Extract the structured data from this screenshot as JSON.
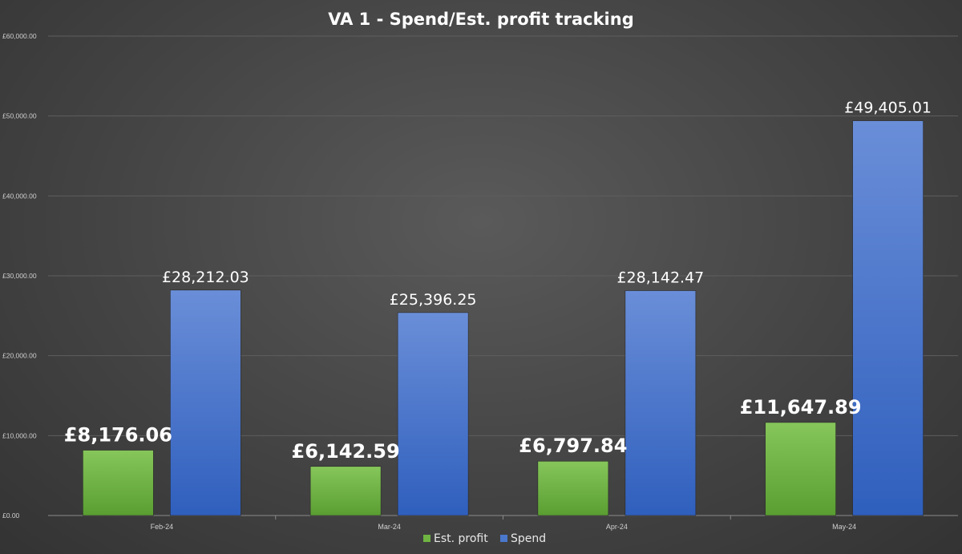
{
  "chart_data": {
    "type": "bar",
    "title": "VA 1 - Spend/Est. profit tracking",
    "xlabel": "",
    "ylabel": "",
    "categories": [
      "Feb-24",
      "Mar-24",
      "Apr-24",
      "May-24"
    ],
    "ylim": [
      0,
      60000
    ],
    "yticks": [
      0,
      10000,
      20000,
      30000,
      40000,
      50000,
      60000
    ],
    "ytick_labels": [
      "£0.00",
      "£10,000.00",
      "£20,000.00",
      "£30,000.00",
      "£40,000.00",
      "£50,000.00",
      "£60,000.00"
    ],
    "grid": true,
    "legend_position": "bottom",
    "series": [
      {
        "name": "Est. profit",
        "color": "#6fb443",
        "values": [
          8176.06,
          6142.59,
          6797.84,
          11647.89
        ],
        "labels": [
          "£8,176.06",
          "£6,142.59",
          "£6,797.84",
          "£11,647.89"
        ]
      },
      {
        "name": "Spend",
        "color": "#4a78cc",
        "values": [
          28212.03,
          25396.25,
          28142.47,
          49405.01
        ],
        "labels": [
          "£28,212.03",
          "£25,396.25",
          "£28,142.47",
          "£49,405.01"
        ]
      }
    ]
  }
}
